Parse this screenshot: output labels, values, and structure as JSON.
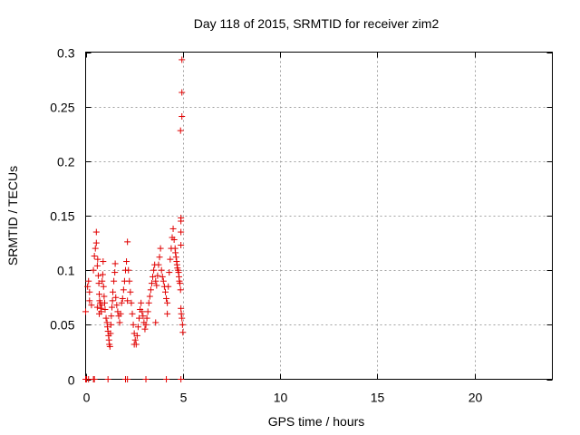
{
  "chart_data": {
    "type": "scatter",
    "title": "Day 118 of 2015, SRMTID for receiver zim2",
    "xlabel": "GPS time / hours",
    "ylabel": "SRMTID / TECUs",
    "xlim": [
      0,
      24
    ],
    "ylim": [
      0,
      0.3
    ],
    "xticks": [
      0,
      5,
      10,
      15,
      20
    ],
    "xtick_labels": [
      "0",
      "5",
      "10",
      "15",
      "20"
    ],
    "yticks": [
      0,
      0.05,
      0.1,
      0.15,
      0.2,
      0.25,
      0.3
    ],
    "ytick_labels": [
      "0",
      "0.05",
      "0.1",
      "0.15",
      "0.2",
      "0.25",
      "0.3"
    ],
    "grid": true,
    "marker": "plus",
    "color": "#e00000",
    "series": [
      {
        "name": "SRMTID",
        "x": [
          0.0,
          0.1,
          0.15,
          0.2,
          0.3,
          0.4,
          0.45,
          0.5,
          0.55,
          0.55,
          0.6,
          0.62,
          0.65,
          0.68,
          0.7,
          0.72,
          0.75,
          0.78,
          0.8,
          0.82,
          0.85,
          0.88,
          0.9,
          0.92,
          0.95,
          0.98,
          1.0,
          1.05,
          1.1,
          1.12,
          1.15,
          1.18,
          1.2,
          1.22,
          1.25,
          1.28,
          1.3,
          1.32,
          1.35,
          1.38,
          1.4,
          1.45,
          1.5,
          1.52,
          1.55,
          1.6,
          1.65,
          1.7,
          1.75,
          1.8,
          1.85,
          1.9,
          1.95,
          2.0,
          2.05,
          2.1,
          2.15,
          2.2,
          2.25,
          2.3,
          2.35,
          2.4,
          2.45,
          2.5,
          2.55,
          2.6,
          2.65,
          2.7,
          2.75,
          2.8,
          2.85,
          2.9,
          2.95,
          3.0,
          3.05,
          3.1,
          3.15,
          3.2,
          3.25,
          3.3,
          3.35,
          3.4,
          3.45,
          3.5,
          3.55,
          3.6,
          3.65,
          3.7,
          3.75,
          3.8,
          3.85,
          3.9,
          3.95,
          4.0,
          4.05,
          4.1,
          4.15,
          4.2,
          4.25,
          4.3,
          4.35,
          4.4,
          4.45,
          4.5,
          4.55,
          4.6,
          4.62,
          4.65,
          4.68,
          4.7,
          4.72,
          4.75,
          4.78,
          4.8,
          4.82,
          4.85,
          4.88,
          4.9,
          4.92,
          4.95,
          4.98,
          5.0,
          4.9,
          4.9,
          4.9,
          4.9,
          0.6,
          2.15,
          4.88,
          0.2,
          0.7,
          2.5,
          3.6,
          4.2,
          0.0,
          0.05,
          0.15,
          0.4,
          0.45,
          1.15,
          2.05,
          2.15,
          3.1,
          4.15,
          4.9
        ],
        "y": [
          0.062,
          0.085,
          0.09,
          0.072,
          0.068,
          0.1,
          0.113,
          0.12,
          0.125,
          0.135,
          0.104,
          0.11,
          0.095,
          0.088,
          0.078,
          0.072,
          0.07,
          0.065,
          0.062,
          0.068,
          0.09,
          0.096,
          0.108,
          0.085,
          0.076,
          0.07,
          0.064,
          0.056,
          0.052,
          0.048,
          0.044,
          0.04,
          0.036,
          0.032,
          0.03,
          0.042,
          0.05,
          0.058,
          0.066,
          0.072,
          0.08,
          0.09,
          0.098,
          0.106,
          0.075,
          0.068,
          0.062,
          0.058,
          0.052,
          0.06,
          0.07,
          0.074,
          0.082,
          0.09,
          0.1,
          0.108,
          0.126,
          0.1,
          0.09,
          0.08,
          0.07,
          0.06,
          0.05,
          0.042,
          0.036,
          0.032,
          0.04,
          0.048,
          0.056,
          0.064,
          0.07,
          0.062,
          0.058,
          0.052,
          0.046,
          0.05,
          0.056,
          0.062,
          0.07,
          0.076,
          0.082,
          0.088,
          0.094,
          0.1,
          0.105,
          0.09,
          0.086,
          0.095,
          0.105,
          0.112,
          0.12,
          0.1,
          0.094,
          0.09,
          0.085,
          0.08,
          0.074,
          0.07,
          0.085,
          0.098,
          0.11,
          0.12,
          0.13,
          0.138,
          0.128,
          0.12,
          0.116,
          0.112,
          0.108,
          0.105,
          0.102,
          0.1,
          0.098,
          0.094,
          0.09,
          0.088,
          0.082,
          0.065,
          0.06,
          0.056,
          0.05,
          0.043,
          0.148,
          0.145,
          0.135,
          0.123,
          0.066,
          0.072,
          0.228,
          0.08,
          0.06,
          0.032,
          0.052,
          0.06,
          0.0,
          0.0,
          0.0,
          0.0,
          0.0,
          0.0,
          0.0,
          0.0,
          0.0,
          0.0,
          0.0
        ],
        "x_extra": [
          4.95,
          4.95,
          4.95
        ],
        "y_extra": [
          0.293,
          0.263,
          0.241
        ]
      }
    ]
  }
}
